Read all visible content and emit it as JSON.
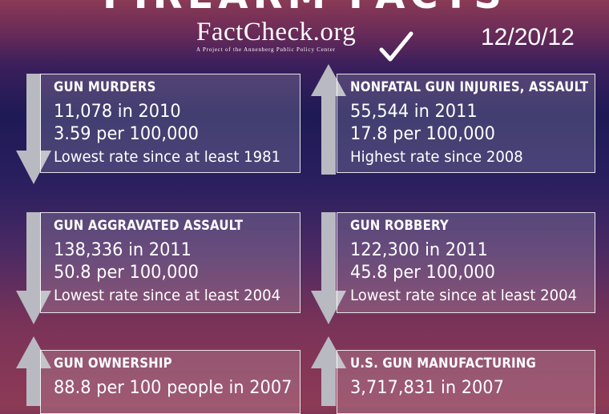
{
  "header": {
    "title": "FIREARM FACTS",
    "brand_name": "FactCheck.org",
    "brand_tagline": "A Project of the Annenberg Public Policy Center",
    "date": "12/20/12"
  },
  "colors": {
    "arrow": "#b9b9c2",
    "card_border": "#ffffff"
  },
  "cards": [
    {
      "title": "GUN MURDERS",
      "line1": "11,078 in 2010",
      "line2": "3.59 per 100,000",
      "line3": "Lowest rate since at least 1981",
      "trend": "down"
    },
    {
      "title": "NONFATAL GUN INJURIES, ASSAULT",
      "line1": "55,544 in 2011",
      "line2": "17.8 per 100,000",
      "line3": "Highest rate since 2008",
      "trend": "up"
    },
    {
      "title": "GUN AGGRAVATED ASSAULT",
      "line1": "138,336 in 2011",
      "line2": "50.8 per 100,000",
      "line3": "Lowest rate since at least 2004",
      "trend": "down"
    },
    {
      "title": "GUN ROBBERY",
      "line1": "122,300 in 2011",
      "line2": "45.8 per 100,000",
      "line3": "Lowest rate since at least 2004",
      "trend": "down"
    },
    {
      "title": "GUN OWNERSHIP",
      "line1": "88.8 per 100 people in 2007",
      "line2": "",
      "line3": "",
      "trend": "up"
    },
    {
      "title": "U.S. GUN MANUFACTURING",
      "line1": "3,717,831 in 2007",
      "line2": "",
      "line3": "",
      "trend": "up"
    }
  ]
}
